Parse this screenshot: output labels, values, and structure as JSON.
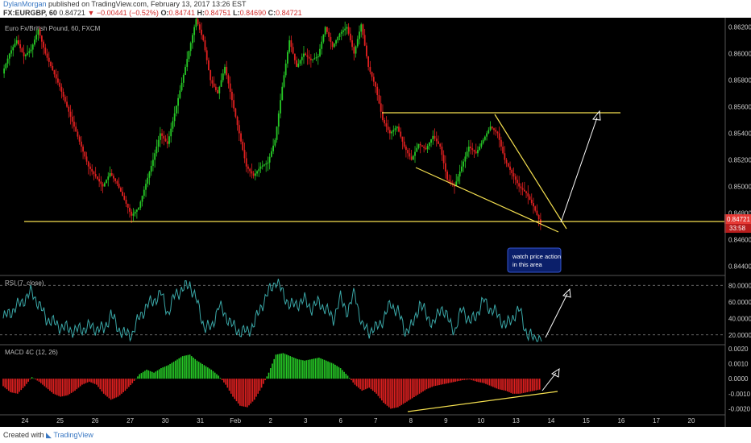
{
  "header": {
    "username": "DylanMorgan",
    "published": "published on TradingView.com, February 13, 2017 13:26 EST",
    "symbol": "FX:EURGBP, 60",
    "last": "0.84721",
    "change": "−0.00441 (−0.52%)",
    "open_label": "O:",
    "open": "0.84741",
    "high_label": "H:",
    "high": "0.84751",
    "low_label": "L:",
    "low": "0.84690",
    "close_label": "C:",
    "close": "0.84721"
  },
  "footer": {
    "created_with": "Created with",
    "brand": "TradingView"
  },
  "colors": {
    "up": "#26c826",
    "down": "#e02020",
    "rsi": "#3aa7a7",
    "trend": "#f5e050",
    "arrow": "#ffffff",
    "note": "#1a3fb0",
    "price_badge": "#e53935"
  },
  "chart_data": {
    "type": "candlestick",
    "title": "Euro Fx/British Pound, 60, FXCM",
    "price_axis": [
      {
        "value": 0.862,
        "label": "0.86200"
      },
      {
        "value": 0.86,
        "label": "0.86000"
      },
      {
        "value": 0.858,
        "label": "0.85800"
      },
      {
        "value": 0.856,
        "label": "0.85600"
      },
      {
        "value": 0.854,
        "label": "0.85400"
      },
      {
        "value": 0.852,
        "label": "0.85200"
      },
      {
        "value": 0.85,
        "label": "0.85000"
      },
      {
        "value": 0.848,
        "label": "0.84800"
      },
      {
        "value": 0.846,
        "label": "0.84600"
      },
      {
        "value": 0.844,
        "label": "0.84400"
      }
    ],
    "ylim": [
      0.8433,
      0.8627
    ],
    "current_price": "0.84721",
    "countdown": "33:58",
    "x_ticks": [
      "24",
      "25",
      "26",
      "27",
      "30",
      "31",
      "Feb",
      "2",
      "3",
      "6",
      "7",
      "8",
      "9",
      "10",
      "13",
      "14",
      "15",
      "16",
      "17",
      "20",
      "2"
    ],
    "price_path": [
      [
        0,
        0.8585
      ],
      [
        1,
        0.86
      ],
      [
        2,
        0.861
      ],
      [
        3,
        0.8598
      ],
      [
        4,
        0.8603
      ],
      [
        5,
        0.8618
      ],
      [
        6,
        0.86
      ],
      [
        8,
        0.8575
      ],
      [
        10,
        0.8545
      ],
      [
        12,
        0.8515
      ],
      [
        14,
        0.85
      ],
      [
        15,
        0.851
      ],
      [
        16,
        0.8502
      ],
      [
        17,
        0.849
      ],
      [
        18,
        0.8478
      ],
      [
        19,
        0.8484
      ],
      [
        20,
        0.8502
      ],
      [
        21,
        0.852
      ],
      [
        22,
        0.854
      ],
      [
        23,
        0.8532
      ],
      [
        24,
        0.8555
      ],
      [
        25,
        0.8578
      ],
      [
        26,
        0.8602
      ],
      [
        27,
        0.8626
      ],
      [
        28,
        0.861
      ],
      [
        29,
        0.858
      ],
      [
        30,
        0.857
      ],
      [
        31,
        0.859
      ],
      [
        32,
        0.8565
      ],
      [
        33,
        0.854
      ],
      [
        34,
        0.8515
      ],
      [
        35,
        0.8508
      ],
      [
        36,
        0.8515
      ],
      [
        37,
        0.8518
      ],
      [
        38,
        0.8535
      ],
      [
        39,
        0.8575
      ],
      [
        40,
        0.861
      ],
      [
        41,
        0.859
      ],
      [
        42,
        0.86
      ],
      [
        43,
        0.8595
      ],
      [
        44,
        0.8598
      ],
      [
        45,
        0.862
      ],
      [
        46,
        0.8605
      ],
      [
        47,
        0.8615
      ],
      [
        48,
        0.862
      ],
      [
        49,
        0.86
      ],
      [
        50,
        0.8622
      ],
      [
        51,
        0.859
      ],
      [
        52,
        0.8575
      ],
      [
        53,
        0.855
      ],
      [
        54,
        0.854
      ],
      [
        55,
        0.8545
      ],
      [
        56,
        0.853
      ],
      [
        57,
        0.852
      ],
      [
        58,
        0.8532
      ],
      [
        59,
        0.8528
      ],
      [
        60,
        0.8538
      ],
      [
        61,
        0.853
      ],
      [
        62,
        0.8505
      ],
      [
        63,
        0.85
      ],
      [
        64,
        0.8515
      ],
      [
        65,
        0.853
      ],
      [
        66,
        0.8525
      ],
      [
        67,
        0.8535
      ],
      [
        68,
        0.8545
      ],
      [
        69,
        0.854
      ],
      [
        70,
        0.852
      ],
      [
        71,
        0.851
      ],
      [
        72,
        0.85
      ],
      [
        73,
        0.8495
      ],
      [
        74,
        0.8485
      ],
      [
        75,
        0.8472
      ]
    ],
    "annotations": {
      "note": [
        "watch price action",
        "in this area"
      ]
    },
    "rsi": {
      "label": "RSI (7, close)",
      "levels": [
        {
          "value": 80,
          "label": "80.0000"
        },
        {
          "value": 60,
          "label": "60.0000"
        },
        {
          "value": 40,
          "label": "40.0000"
        },
        {
          "value": 20,
          "label": "20.0000"
        }
      ],
      "ylim": [
        10,
        90
      ],
      "path": [
        [
          0,
          40
        ],
        [
          2,
          55
        ],
        [
          4,
          72
        ],
        [
          6,
          40
        ],
        [
          8,
          30
        ],
        [
          10,
          25
        ],
        [
          12,
          30
        ],
        [
          14,
          26
        ],
        [
          15,
          45
        ],
        [
          16,
          28
        ],
        [
          17,
          20
        ],
        [
          18,
          22
        ],
        [
          19,
          42
        ],
        [
          20,
          55
        ],
        [
          21,
          62
        ],
        [
          22,
          70
        ],
        [
          23,
          46
        ],
        [
          24,
          70
        ],
        [
          25,
          75
        ],
        [
          26,
          82
        ],
        [
          27,
          60
        ],
        [
          28,
          30
        ],
        [
          29,
          28
        ],
        [
          30,
          55
        ],
        [
          31,
          44
        ],
        [
          32,
          30
        ],
        [
          33,
          24
        ],
        [
          34,
          24
        ],
        [
          35,
          34
        ],
        [
          36,
          56
        ],
        [
          37,
          72
        ],
        [
          38,
          86
        ],
        [
          39,
          70
        ],
        [
          40,
          55
        ],
        [
          41,
          58
        ],
        [
          42,
          62
        ],
        [
          43,
          52
        ],
        [
          44,
          60
        ],
        [
          45,
          50
        ],
        [
          46,
          40
        ],
        [
          47,
          64
        ],
        [
          48,
          48
        ],
        [
          49,
          72
        ],
        [
          50,
          30
        ],
        [
          51,
          25
        ],
        [
          52,
          28
        ],
        [
          53,
          40
        ],
        [
          54,
          58
        ],
        [
          55,
          48
        ],
        [
          56,
          25
        ],
        [
          57,
          30
        ],
        [
          58,
          58
        ],
        [
          59,
          44
        ],
        [
          60,
          32
        ],
        [
          61,
          55
        ],
        [
          62,
          38
        ],
        [
          63,
          25
        ],
        [
          64,
          54
        ],
        [
          65,
          34
        ],
        [
          66,
          46
        ],
        [
          67,
          62
        ],
        [
          68,
          50
        ],
        [
          69,
          44
        ],
        [
          70,
          30
        ],
        [
          71,
          42
        ],
        [
          72,
          50
        ],
        [
          73,
          20
        ],
        [
          74,
          16
        ],
        [
          75,
          15
        ]
      ]
    },
    "macd": {
      "label": "MACD 4C (12, 26)",
      "levels": [
        {
          "value": 0.002,
          "label": "0.0020"
        },
        {
          "value": 0.001,
          "label": "0.0010"
        },
        {
          "value": 0.0,
          "label": "0.0000"
        },
        {
          "value": -0.001,
          "label": "-0.0010"
        },
        {
          "value": -0.002,
          "label": "-0.0020"
        }
      ],
      "ylim": [
        -0.00235,
        0.00215
      ],
      "path": [
        [
          0,
          -0.0005
        ],
        [
          1,
          -0.0009
        ],
        [
          2,
          -0.001
        ],
        [
          3,
          -0.0005
        ],
        [
          4,
          0.0001
        ],
        [
          5,
          -0.0002
        ],
        [
          6,
          -0.0006
        ],
        [
          7,
          -0.001
        ],
        [
          8,
          -0.0012
        ],
        [
          9,
          -0.0011
        ],
        [
          10,
          -0.0008
        ],
        [
          11,
          -0.0004
        ],
        [
          12,
          -0.0002
        ],
        [
          13,
          -0.0004
        ],
        [
          14,
          -0.001
        ],
        [
          15,
          -0.0014
        ],
        [
          16,
          -0.0012
        ],
        [
          17,
          -0.0008
        ],
        [
          18,
          -0.0003
        ],
        [
          19,
          0.0003
        ],
        [
          20,
          0.0006
        ],
        [
          21,
          0.0004
        ],
        [
          22,
          0.0007
        ],
        [
          23,
          0.0009
        ],
        [
          24,
          0.0012
        ],
        [
          25,
          0.0015
        ],
        [
          26,
          0.0016
        ],
        [
          27,
          0.0012
        ],
        [
          28,
          0.0009
        ],
        [
          29,
          0.0006
        ],
        [
          30,
          0.0002
        ],
        [
          31,
          -0.0004
        ],
        [
          32,
          -0.0012
        ],
        [
          33,
          -0.0018
        ],
        [
          34,
          -0.0019
        ],
        [
          35,
          -0.0014
        ],
        [
          36,
          -0.0006
        ],
        [
          37,
          0.0004
        ],
        [
          38,
          0.0016
        ],
        [
          39,
          0.0017
        ],
        [
          40,
          0.0015
        ],
        [
          41,
          0.0013
        ],
        [
          42,
          0.0012
        ],
        [
          43,
          0.0013
        ],
        [
          44,
          0.0014
        ],
        [
          45,
          0.0012
        ],
        [
          46,
          0.001
        ],
        [
          47,
          0.0007
        ],
        [
          48,
          0.0002
        ],
        [
          49,
          -0.0004
        ],
        [
          50,
          -0.0008
        ],
        [
          51,
          -0.0006
        ],
        [
          52,
          -0.001
        ],
        [
          53,
          -0.0016
        ],
        [
          54,
          -0.002
        ],
        [
          55,
          -0.0019
        ],
        [
          56,
          -0.0016
        ],
        [
          57,
          -0.0013
        ],
        [
          58,
          -0.001
        ],
        [
          59,
          -0.0007
        ],
        [
          60,
          -0.0005
        ],
        [
          61,
          -0.0004
        ],
        [
          62,
          -0.0003
        ],
        [
          63,
          -0.0002
        ],
        [
          64,
          -0.0001
        ],
        [
          65,
          -5e-05
        ],
        [
          66,
          -0.0002
        ],
        [
          67,
          -0.0003
        ],
        [
          68,
          -0.0005
        ],
        [
          69,
          -0.0007
        ],
        [
          70,
          -0.0008
        ],
        [
          71,
          -0.001
        ],
        [
          72,
          -0.001
        ],
        [
          73,
          -0.0009
        ],
        [
          74,
          -0.0008
        ],
        [
          75,
          -0.0007
        ]
      ]
    }
  }
}
